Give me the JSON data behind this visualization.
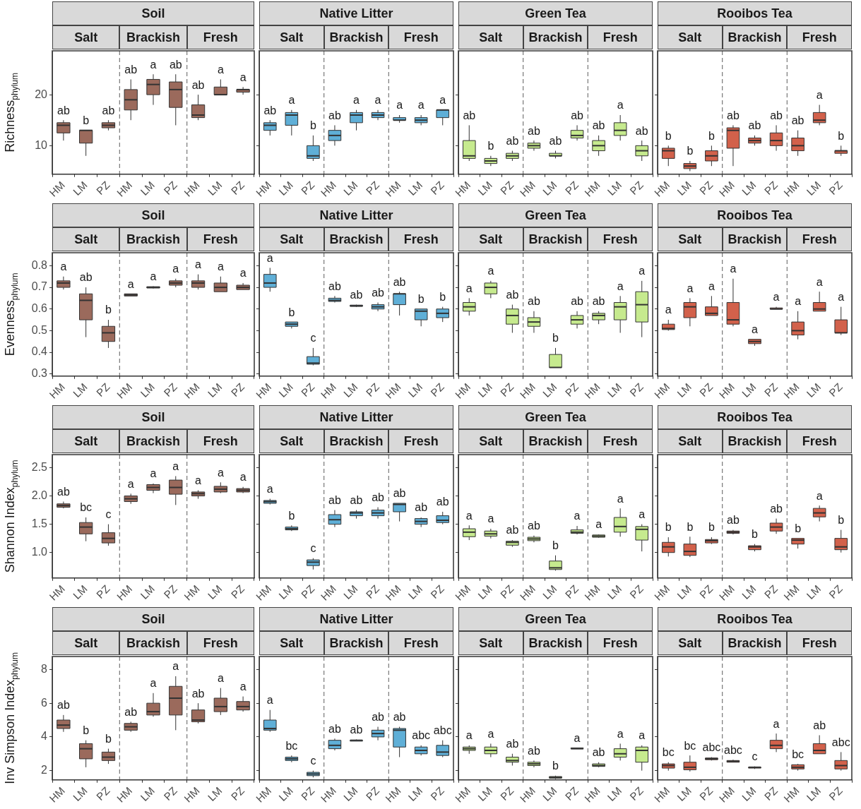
{
  "chart_data": [
    {
      "type": "box",
      "title": "Soil",
      "annotations": [
        "Salt",
        "Brackish",
        "Fresh"
      ],
      "ylabel": "Richness$_{phylum}$",
      "categories": [
        "HM",
        "LM",
        "PZ",
        "HM",
        "LM",
        "PZ",
        "HM",
        "LM",
        "PZ"
      ],
      "color": "#9b6a5c",
      "ylim": [
        4.4,
        28.6
      ],
      "yticks": [
        10,
        20
      ],
      "value_labels": [
        "ab",
        "b",
        "ab",
        "ab",
        "a",
        "ab",
        "ab",
        "a",
        "a"
      ],
      "boxes": [
        {
          "low": 11,
          "q1": 12.5,
          "median": 14,
          "q3": 14.5,
          "high": 15
        },
        {
          "low": 8,
          "q1": 10.5,
          "median": 13,
          "q3": 13,
          "high": 13
        },
        {
          "low": 13,
          "q1": 13.5,
          "median": 14,
          "q3": 14.5,
          "high": 15
        },
        {
          "low": 15,
          "q1": 17,
          "median": 19,
          "q3": 21,
          "high": 23
        },
        {
          "low": 18,
          "q1": 20,
          "median": 22,
          "q3": 23,
          "high": 24
        },
        {
          "low": 14,
          "q1": 17.5,
          "median": 21,
          "q3": 22.5,
          "high": 24
        },
        {
          "low": 15,
          "q1": 15.5,
          "median": 16,
          "q3": 18,
          "high": 20
        },
        {
          "low": 20,
          "q1": 20,
          "median": 20,
          "q3": 21.5,
          "high": 23
        },
        {
          "low": 20,
          "q1": 20.5,
          "median": 21,
          "q3": 21,
          "high": 21.5
        }
      ]
    },
    {
      "type": "box",
      "title": "Native Litter",
      "annotations": [
        "Salt",
        "Brackish",
        "Fresh"
      ],
      "categories": [
        "HM",
        "LM",
        "PZ",
        "HM",
        "LM",
        "PZ",
        "HM",
        "LM",
        "PZ"
      ],
      "color": "#5fafd7",
      "ylim": [
        4.4,
        28.6
      ],
      "yticks": [
        10,
        20
      ],
      "tick_labels": "x",
      "value_labels": [
        "ab",
        "a",
        "b",
        "ab",
        "a",
        "a",
        "a",
        "a",
        "a"
      ],
      "boxes": [
        {
          "low": 12,
          "q1": 13,
          "median": 14,
          "q3": 14.5,
          "high": 15
        },
        {
          "low": 12,
          "q1": 14,
          "median": 16,
          "q3": 16.5,
          "high": 17
        },
        {
          "low": 7,
          "q1": 7.5,
          "median": 8,
          "q3": 10,
          "high": 12
        },
        {
          "low": 10,
          "q1": 11,
          "median": 12,
          "q3": 13,
          "high": 14
        },
        {
          "low": 13,
          "q1": 14.5,
          "median": 16,
          "q3": 16.5,
          "high": 17
        },
        {
          "low": 15,
          "q1": 15.5,
          "median": 16,
          "q3": 16.5,
          "high": 17
        },
        {
          "low": 14.5,
          "q1": 15,
          "median": 15,
          "q3": 15.5,
          "high": 16
        },
        {
          "low": 14,
          "q1": 14.5,
          "median": 15,
          "q3": 15.5,
          "high": 16
        },
        {
          "low": 14,
          "q1": 15.5,
          "median": 17,
          "q3": 17,
          "high": 17
        }
      ]
    },
    {
      "type": "box",
      "title": "Green Tea",
      "annotations": [
        "Salt",
        "Brackish",
        "Fresh"
      ],
      "categories": [
        "HM",
        "LM",
        "PZ",
        "HM",
        "LM",
        "PZ",
        "HM",
        "LM",
        "PZ"
      ],
      "color": "#c6ea8e",
      "ylim": [
        4.4,
        28.6
      ],
      "yticks": [
        10,
        20
      ],
      "tick_labels": "x",
      "value_labels": [
        "ab",
        "b",
        "ab",
        "ab",
        "ab",
        "ab",
        "ab",
        "a",
        "ab"
      ],
      "boxes": [
        {
          "low": 7,
          "q1": 7.5,
          "median": 8,
          "q3": 11,
          "high": 14
        },
        {
          "low": 6,
          "q1": 6.5,
          "median": 7,
          "q3": 7.5,
          "high": 8
        },
        {
          "low": 7,
          "q1": 7.5,
          "median": 8,
          "q3": 8.5,
          "high": 9
        },
        {
          "low": 9,
          "q1": 9.5,
          "median": 10,
          "q3": 10.5,
          "high": 11
        },
        {
          "low": 7.5,
          "q1": 8,
          "median": 8,
          "q3": 8.5,
          "high": 9
        },
        {
          "low": 11,
          "q1": 11.5,
          "median": 12,
          "q3": 13,
          "high": 14
        },
        {
          "low": 8,
          "q1": 9,
          "median": 10,
          "q3": 11,
          "high": 12
        },
        {
          "low": 11,
          "q1": 12,
          "median": 13,
          "q3": 14.5,
          "high": 16
        },
        {
          "low": 7,
          "q1": 8,
          "median": 9,
          "q3": 10,
          "high": 11
        }
      ]
    },
    {
      "type": "box",
      "title": "Rooibos Tea",
      "annotations": [
        "Salt",
        "Brackish",
        "Fresh"
      ],
      "categories": [
        "HM",
        "LM",
        "PZ",
        "HM",
        "LM",
        "PZ",
        "HM",
        "LM",
        "PZ"
      ],
      "color": "#d2614b",
      "ylim": [
        4.4,
        28.6
      ],
      "yticks": [
        10,
        20
      ],
      "tick_labels": "x",
      "value_labels": [
        "b",
        "b",
        "b",
        "ab",
        "ab",
        "ab",
        "ab",
        "a",
        "b"
      ],
      "boxes": [
        {
          "low": 6,
          "q1": 7.5,
          "median": 9,
          "q3": 9.5,
          "high": 10
        },
        {
          "low": 5,
          "q1": 5.5,
          "median": 6,
          "q3": 6.5,
          "high": 7
        },
        {
          "low": 6,
          "q1": 7,
          "median": 8,
          "q3": 9,
          "high": 10
        },
        {
          "low": 6,
          "q1": 9.5,
          "median": 13,
          "q3": 13.5,
          "high": 14
        },
        {
          "low": 10,
          "q1": 10.5,
          "median": 11,
          "q3": 11.5,
          "high": 12
        },
        {
          "low": 9,
          "q1": 10,
          "median": 11,
          "q3": 12.5,
          "high": 14
        },
        {
          "low": 8,
          "q1": 9,
          "median": 10,
          "q3": 11.5,
          "high": 13
        },
        {
          "low": 14,
          "q1": 14.5,
          "median": 15,
          "q3": 16.5,
          "high": 18
        },
        {
          "low": 8,
          "q1": 8.5,
          "median": 9,
          "q3": 9,
          "high": 10
        }
      ]
    },
    {
      "type": "box",
      "title": "Soil",
      "annotations": [
        "Salt",
        "Brackish",
        "Fresh"
      ],
      "ylabel": "Evenness$_{phylum}$",
      "categories": [
        "HM",
        "LM",
        "PZ",
        "HM",
        "LM",
        "PZ",
        "HM",
        "LM",
        "PZ"
      ],
      "color": "#9b6a5c",
      "ylim": [
        0.29,
        0.86
      ],
      "yticks": [
        0.3,
        0.4,
        0.5,
        0.6,
        0.7,
        0.8
      ],
      "value_labels": [
        "a",
        "ab",
        "b",
        "a",
        "a",
        "a",
        "a",
        "a",
        "a"
      ],
      "boxes": [
        {
          "low": 0.69,
          "q1": 0.7,
          "median": 0.72,
          "q3": 0.73,
          "high": 0.75
        },
        {
          "low": 0.47,
          "q1": 0.55,
          "median": 0.64,
          "q3": 0.67,
          "high": 0.7
        },
        {
          "low": 0.42,
          "q1": 0.45,
          "median": 0.49,
          "q3": 0.52,
          "high": 0.55
        },
        {
          "low": 0.66,
          "q1": 0.66,
          "median": 0.665,
          "q3": 0.67,
          "high": 0.67
        },
        {
          "low": 0.695,
          "q1": 0.697,
          "median": 0.7,
          "q3": 0.703,
          "high": 0.705
        },
        {
          "low": 0.7,
          "q1": 0.71,
          "median": 0.72,
          "q3": 0.73,
          "high": 0.74
        },
        {
          "low": 0.69,
          "q1": 0.7,
          "median": 0.72,
          "q3": 0.73,
          "high": 0.76
        },
        {
          "low": 0.68,
          "q1": 0.68,
          "median": 0.7,
          "q3": 0.72,
          "high": 0.75
        },
        {
          "low": 0.69,
          "q1": 0.69,
          "median": 0.7,
          "q3": 0.71,
          "high": 0.72
        }
      ]
    },
    {
      "type": "box",
      "title": "Native Litter",
      "annotations": [
        "Salt",
        "Brackish",
        "Fresh"
      ],
      "categories": [
        "HM",
        "LM",
        "PZ",
        "HM",
        "LM",
        "PZ",
        "HM",
        "LM",
        "PZ"
      ],
      "color": "#5fafd7",
      "ylim": [
        0.29,
        0.86
      ],
      "yticks": [
        0.3,
        0.4,
        0.5,
        0.6,
        0.7,
        0.8
      ],
      "tick_labels": "x",
      "value_labels": [
        "a",
        "b",
        "c",
        "ab",
        "ab",
        "ab",
        "ab",
        "b",
        "b"
      ],
      "boxes": [
        {
          "low": 0.68,
          "q1": 0.7,
          "median": 0.72,
          "q3": 0.76,
          "high": 0.79
        },
        {
          "low": 0.51,
          "q1": 0.52,
          "median": 0.53,
          "q3": 0.54,
          "high": 0.54
        },
        {
          "low": 0.34,
          "q1": 0.345,
          "median": 0.35,
          "q3": 0.38,
          "high": 0.42
        },
        {
          "low": 0.63,
          "q1": 0.635,
          "median": 0.64,
          "q3": 0.65,
          "high": 0.66
        },
        {
          "low": 0.61,
          "q1": 0.612,
          "median": 0.615,
          "q3": 0.618,
          "high": 0.62
        },
        {
          "low": 0.59,
          "q1": 0.6,
          "median": 0.61,
          "q3": 0.62,
          "high": 0.63
        },
        {
          "low": 0.57,
          "q1": 0.62,
          "median": 0.67,
          "q3": 0.67,
          "high": 0.68
        },
        {
          "low": 0.52,
          "q1": 0.55,
          "median": 0.59,
          "q3": 0.6,
          "high": 0.6
        },
        {
          "low": 0.54,
          "q1": 0.56,
          "median": 0.58,
          "q3": 0.6,
          "high": 0.61
        }
      ]
    },
    {
      "type": "box",
      "title": "Green Tea",
      "annotations": [
        "Salt",
        "Brackish",
        "Fresh"
      ],
      "categories": [
        "HM",
        "LM",
        "PZ",
        "HM",
        "LM",
        "PZ",
        "HM",
        "LM",
        "PZ"
      ],
      "color": "#c6ea8e",
      "ylim": [
        0.29,
        0.86
      ],
      "yticks": [
        0.3,
        0.4,
        0.5,
        0.6,
        0.7,
        0.8
      ],
      "tick_labels": "x",
      "value_labels": [
        "a",
        "a",
        "ab",
        "ab",
        "b",
        "ab",
        "ab",
        "a",
        "a"
      ],
      "boxes": [
        {
          "low": 0.57,
          "q1": 0.59,
          "median": 0.61,
          "q3": 0.63,
          "high": 0.65
        },
        {
          "low": 0.65,
          "q1": 0.67,
          "median": 0.7,
          "q3": 0.72,
          "high": 0.73
        },
        {
          "low": 0.49,
          "q1": 0.53,
          "median": 0.57,
          "q3": 0.6,
          "high": 0.62
        },
        {
          "low": 0.49,
          "q1": 0.52,
          "median": 0.54,
          "q3": 0.56,
          "high": 0.59
        },
        {
          "low": 0.33,
          "q1": 0.33,
          "median": 0.33,
          "q3": 0.39,
          "high": 0.42
        },
        {
          "low": 0.51,
          "q1": 0.53,
          "median": 0.55,
          "q3": 0.57,
          "high": 0.59
        },
        {
          "low": 0.53,
          "q1": 0.55,
          "median": 0.57,
          "q3": 0.58,
          "high": 0.59
        },
        {
          "low": 0.49,
          "q1": 0.55,
          "median": 0.61,
          "q3": 0.63,
          "high": 0.66
        },
        {
          "low": 0.47,
          "q1": 0.54,
          "median": 0.62,
          "q3": 0.68,
          "high": 0.73
        }
      ]
    },
    {
      "type": "box",
      "title": "Rooibos Tea",
      "annotations": [
        "Salt",
        "Brackish",
        "Fresh"
      ],
      "categories": [
        "HM",
        "LM",
        "PZ",
        "HM",
        "LM",
        "PZ",
        "HM",
        "LM",
        "PZ"
      ],
      "color": "#d2614b",
      "ylim": [
        0.29,
        0.86
      ],
      "yticks": [
        0.3,
        0.4,
        0.5,
        0.6,
        0.7,
        0.8
      ],
      "tick_labels": "x",
      "value_labels": [
        "a",
        "a",
        "a",
        "a",
        "a",
        "a",
        "a",
        "a",
        "a"
      ],
      "boxes": [
        {
          "low": 0.5,
          "q1": 0.505,
          "median": 0.51,
          "q3": 0.53,
          "high": 0.55
        },
        {
          "low": 0.52,
          "q1": 0.56,
          "median": 0.61,
          "q3": 0.63,
          "high": 0.65
        },
        {
          "low": 0.57,
          "q1": 0.57,
          "median": 0.58,
          "q3": 0.61,
          "high": 0.66
        },
        {
          "low": 0.52,
          "q1": 0.53,
          "median": 0.55,
          "q3": 0.63,
          "high": 0.74
        },
        {
          "low": 0.43,
          "q1": 0.44,
          "median": 0.45,
          "q3": 0.46,
          "high": 0.46
        },
        {
          "low": 0.6,
          "q1": 0.6,
          "median": 0.6,
          "q3": 0.605,
          "high": 0.61
        },
        {
          "low": 0.46,
          "q1": 0.48,
          "median": 0.5,
          "q3": 0.54,
          "high": 0.59
        },
        {
          "low": 0.59,
          "q1": 0.59,
          "median": 0.6,
          "q3": 0.63,
          "high": 0.68
        },
        {
          "low": 0.48,
          "q1": 0.49,
          "median": 0.49,
          "q3": 0.55,
          "high": 0.61
        }
      ]
    },
    {
      "type": "box",
      "title": "Soil",
      "annotations": [
        "Salt",
        "Brackish",
        "Fresh"
      ],
      "ylabel": "Shannon Index$_{phylum}$",
      "categories": [
        "HM",
        "LM",
        "PZ",
        "HM",
        "LM",
        "PZ",
        "HM",
        "LM",
        "PZ"
      ],
      "color": "#9b6a5c",
      "ylim": [
        0.55,
        2.73
      ],
      "yticks": [
        {
          "value": 1,
          "label": "1.0"
        },
        1.5,
        {
          "value": 2,
          "label": "2.0"
        },
        2.5
      ],
      "value_labels": [
        "ab",
        "bc",
        "c",
        "a",
        "a",
        "a",
        "a",
        "a",
        "a"
      ],
      "boxes": [
        {
          "low": 1.78,
          "q1": 1.8,
          "median": 1.83,
          "q3": 1.86,
          "high": 1.9
        },
        {
          "low": 1.2,
          "q1": 1.33,
          "median": 1.45,
          "q3": 1.53,
          "high": 1.62
        },
        {
          "low": 1.12,
          "q1": 1.17,
          "median": 1.25,
          "q3": 1.35,
          "high": 1.5
        },
        {
          "low": 1.86,
          "q1": 1.9,
          "median": 1.95,
          "q3": 2,
          "high": 2.04
        },
        {
          "low": 2.05,
          "q1": 2.1,
          "median": 2.15,
          "q3": 2.2,
          "high": 2.22
        },
        {
          "low": 1.84,
          "q1": 2.03,
          "median": 2.15,
          "q3": 2.28,
          "high": 2.35
        },
        {
          "low": 1.95,
          "q1": 2,
          "median": 2.04,
          "q3": 2.07,
          "high": 2.1
        },
        {
          "low": 2.05,
          "q1": 2.07,
          "median": 2.12,
          "q3": 2.17,
          "high": 2.24
        },
        {
          "low": 2.05,
          "q1": 2.07,
          "median": 2.1,
          "q3": 2.13,
          "high": 2.16
        }
      ]
    },
    {
      "type": "box",
      "title": "Native Litter",
      "annotations": [
        "Salt",
        "Brackish",
        "Fresh"
      ],
      "categories": [
        "HM",
        "LM",
        "PZ",
        "HM",
        "LM",
        "PZ",
        "HM",
        "LM",
        "PZ"
      ],
      "color": "#5fafd7",
      "ylim": [
        0.55,
        2.73
      ],
      "yticks": [
        1,
        1.5,
        2,
        2.5
      ],
      "tick_labels": "x",
      "value_labels": [
        "a",
        "b",
        "c",
        "ab",
        "ab",
        "ab",
        "ab",
        "ab",
        "ab"
      ],
      "boxes": [
        {
          "low": 1.85,
          "q1": 1.87,
          "median": 1.9,
          "q3": 1.92,
          "high": 1.95
        },
        {
          "low": 1.38,
          "q1": 1.4,
          "median": 1.42,
          "q3": 1.45,
          "high": 1.48
        },
        {
          "low": 0.7,
          "q1": 0.77,
          "median": 0.83,
          "q3": 0.87,
          "high": 0.9
        },
        {
          "low": 1.45,
          "q1": 1.5,
          "median": 1.58,
          "q3": 1.67,
          "high": 1.75
        },
        {
          "low": 1.6,
          "q1": 1.65,
          "median": 1.7,
          "q3": 1.72,
          "high": 1.75
        },
        {
          "low": 1.6,
          "q1": 1.65,
          "median": 1.7,
          "q3": 1.75,
          "high": 1.8
        },
        {
          "low": 1.55,
          "q1": 1.72,
          "median": 1.85,
          "q3": 1.87,
          "high": 1.87
        },
        {
          "low": 1.45,
          "q1": 1.5,
          "median": 1.55,
          "q3": 1.6,
          "high": 1.62
        },
        {
          "low": 1.5,
          "q1": 1.53,
          "median": 1.57,
          "q3": 1.65,
          "high": 1.72
        }
      ]
    },
    {
      "type": "box",
      "title": "Green Tea",
      "annotations": [
        "Salt",
        "Brackish",
        "Fresh"
      ],
      "categories": [
        "HM",
        "LM",
        "PZ",
        "HM",
        "LM",
        "PZ",
        "HM",
        "LM",
        "PZ"
      ],
      "color": "#c6ea8e",
      "ylim": [
        0.55,
        2.73
      ],
      "yticks": [
        1,
        1.5,
        2,
        2.5
      ],
      "tick_labels": "x",
      "value_labels": [
        "a",
        "a",
        "ab",
        "ab",
        "b",
        "a",
        "a",
        "a",
        "a"
      ],
      "boxes": [
        {
          "low": 1.22,
          "q1": 1.28,
          "median": 1.36,
          "q3": 1.42,
          "high": 1.48
        },
        {
          "low": 1.25,
          "q1": 1.29,
          "median": 1.33,
          "q3": 1.38,
          "high": 1.42
        },
        {
          "low": 1.1,
          "q1": 1.13,
          "median": 1.18,
          "q3": 1.2,
          "high": 1.22
        },
        {
          "low": 1.18,
          "q1": 1.21,
          "median": 1.24,
          "q3": 1.27,
          "high": 1.3
        },
        {
          "low": 0.68,
          "q1": 0.7,
          "median": 0.73,
          "q3": 0.85,
          "high": 0.95
        },
        {
          "low": 1.32,
          "q1": 1.34,
          "median": 1.36,
          "q3": 1.4,
          "high": 1.47
        },
        {
          "low": 1.26,
          "q1": 1.27,
          "median": 1.29,
          "q3": 1.31,
          "high": 1.32
        },
        {
          "low": 1.28,
          "q1": 1.36,
          "median": 1.46,
          "q3": 1.62,
          "high": 1.78
        },
        {
          "low": 1.02,
          "q1": 1.22,
          "median": 1.41,
          "q3": 1.46,
          "high": 1.5
        }
      ]
    },
    {
      "type": "box",
      "title": "Rooibos Tea",
      "annotations": [
        "Salt",
        "Brackish",
        "Fresh"
      ],
      "categories": [
        "HM",
        "LM",
        "PZ",
        "HM",
        "LM",
        "PZ",
        "HM",
        "LM",
        "PZ"
      ],
      "color": "#d2614b",
      "ylim": [
        0.55,
        2.73
      ],
      "yticks": [
        1,
        1.5,
        2,
        2.5
      ],
      "tick_labels": "x",
      "value_labels": [
        "b",
        "b",
        "b",
        "ab",
        "b",
        "ab",
        "b",
        "a",
        "b"
      ],
      "boxes": [
        {
          "low": 0.93,
          "q1": 1,
          "median": 1.1,
          "q3": 1.18,
          "high": 1.27
        },
        {
          "low": 0.92,
          "q1": 0.95,
          "median": 1.02,
          "q3": 1.15,
          "high": 1.28
        },
        {
          "low": 1.15,
          "q1": 1.17,
          "median": 1.21,
          "q3": 1.23,
          "high": 1.27
        },
        {
          "low": 1.32,
          "q1": 1.34,
          "median": 1.36,
          "q3": 1.38,
          "high": 1.4
        },
        {
          "low": 1.02,
          "q1": 1.05,
          "median": 1.1,
          "q3": 1.12,
          "high": 1.15
        },
        {
          "low": 1.33,
          "q1": 1.38,
          "median": 1.45,
          "q3": 1.52,
          "high": 1.6
        },
        {
          "low": 1.07,
          "q1": 1.15,
          "median": 1.22,
          "q3": 1.25,
          "high": 1.25
        },
        {
          "low": 1.55,
          "q1": 1.63,
          "median": 1.7,
          "q3": 1.78,
          "high": 1.83
        },
        {
          "low": 1,
          "q1": 1.05,
          "median": 1.1,
          "q3": 1.25,
          "high": 1.4
        }
      ]
    },
    {
      "type": "box",
      "title": "Soil",
      "annotations": [
        "Salt",
        "Brackish",
        "Fresh"
      ],
      "ylabel": "Inv Simpson Index$_{phylum}$",
      "categories": [
        "HM",
        "LM",
        "PZ",
        "HM",
        "LM",
        "PZ",
        "HM",
        "LM",
        "PZ"
      ],
      "color": "#9b6a5c",
      "ylim": [
        1.45,
        8.77
      ],
      "yticks": [
        2,
        4,
        6,
        8
      ],
      "value_labels": [
        "ab",
        "b",
        "b",
        "ab",
        "a",
        "a",
        "ab",
        "a",
        "a"
      ],
      "boxes": [
        {
          "low": 4.3,
          "q1": 4.5,
          "median": 4.7,
          "q3": 5,
          "high": 5.3
        },
        {
          "low": 2.2,
          "q1": 2.7,
          "median": 3.3,
          "q3": 3.6,
          "high": 3.8
        },
        {
          "low": 2.4,
          "q1": 2.6,
          "median": 2.8,
          "q3": 3.1,
          "high": 3.3
        },
        {
          "low": 4.3,
          "q1": 4.4,
          "median": 4.6,
          "q3": 4.8,
          "high": 4.9
        },
        {
          "low": 5.2,
          "q1": 5.3,
          "median": 5.5,
          "q3": 6,
          "high": 6.6
        },
        {
          "low": 4.4,
          "q1": 5.3,
          "median": 6.3,
          "q3": 7,
          "high": 7.6
        },
        {
          "low": 4.8,
          "q1": 4.9,
          "median": 5,
          "q3": 5.6,
          "high": 6
        },
        {
          "low": 5.3,
          "q1": 5.5,
          "median": 5.8,
          "q3": 6.3,
          "high": 6.9
        },
        {
          "low": 5.5,
          "q1": 5.6,
          "median": 5.8,
          "q3": 6.1,
          "high": 6.4
        }
      ]
    },
    {
      "type": "box",
      "title": "Native Litter",
      "annotations": [
        "Salt",
        "Brackish",
        "Fresh"
      ],
      "categories": [
        "HM",
        "LM",
        "PZ",
        "HM",
        "LM",
        "PZ",
        "HM",
        "LM",
        "PZ"
      ],
      "color": "#5fafd7",
      "ylim": [
        1.45,
        8.77
      ],
      "yticks": [
        2,
        4,
        6,
        8
      ],
      "tick_labels": "x",
      "value_labels": [
        "a",
        "bc",
        "c",
        "ab",
        "ab",
        "ab",
        "ab",
        "abc",
        "abc"
      ],
      "boxes": [
        {
          "low": 4.3,
          "q1": 4.4,
          "median": 4.5,
          "q3": 5,
          "high": 5.6
        },
        {
          "low": 2.5,
          "q1": 2.6,
          "median": 2.7,
          "q3": 2.8,
          "high": 2.9
        },
        {
          "low": 1.6,
          "q1": 1.7,
          "median": 1.8,
          "q3": 1.9,
          "high": 2
        },
        {
          "low": 3.2,
          "q1": 3.3,
          "median": 3.5,
          "q3": 3.8,
          "high": 3.9
        },
        {
          "low": 3.75,
          "q1": 3.75,
          "median": 3.8,
          "q3": 3.8,
          "high": 3.85
        },
        {
          "low": 3.8,
          "q1": 4,
          "median": 4.2,
          "q3": 4.4,
          "high": 4.6
        },
        {
          "low": 2.8,
          "q1": 3.4,
          "median": 4.4,
          "q3": 4.5,
          "high": 4.6
        },
        {
          "low": 2.9,
          "q1": 3,
          "median": 3.2,
          "q3": 3.4,
          "high": 3.5
        },
        {
          "low": 2.8,
          "q1": 2.9,
          "median": 3.1,
          "q3": 3.5,
          "high": 3.8
        }
      ]
    },
    {
      "type": "box",
      "title": "Green Tea",
      "annotations": [
        "Salt",
        "Brackish",
        "Fresh"
      ],
      "categories": [
        "HM",
        "LM",
        "PZ",
        "HM",
        "LM",
        "PZ",
        "HM",
        "LM",
        "PZ"
      ],
      "color": "#c6ea8e",
      "ylim": [
        1.45,
        8.77
      ],
      "yticks": [
        2,
        4,
        6,
        8
      ],
      "tick_labels": "x",
      "value_labels": [
        "a",
        "a",
        "ab",
        "ab",
        "b",
        "a",
        "ab",
        "a",
        "a"
      ],
      "boxes": [
        {
          "low": 3,
          "q1": 3.2,
          "median": 3.3,
          "q3": 3.4,
          "high": 3.5
        },
        {
          "low": 2.8,
          "q1": 3,
          "median": 3.2,
          "q3": 3.4,
          "high": 3.6
        },
        {
          "low": 2.3,
          "q1": 2.5,
          "median": 2.6,
          "q3": 2.8,
          "high": 3
        },
        {
          "low": 2.2,
          "q1": 2.3,
          "median": 2.4,
          "q3": 2.5,
          "high": 2.6
        },
        {
          "low": 1.5,
          "q1": 1.55,
          "median": 1.6,
          "q3": 1.65,
          "high": 1.7
        },
        {
          "low": 3.3,
          "q1": 3.3,
          "median": 3.3,
          "q3": 3.35,
          "high": 3.35
        },
        {
          "low": 2.2,
          "q1": 2.25,
          "median": 2.3,
          "q3": 2.4,
          "high": 2.5
        },
        {
          "low": 2.6,
          "q1": 2.8,
          "median": 3,
          "q3": 3.3,
          "high": 3.6
        },
        {
          "low": 2,
          "q1": 2.5,
          "median": 3.2,
          "q3": 3.4,
          "high": 3.5
        }
      ]
    },
    {
      "type": "box",
      "title": "Rooibos Tea",
      "annotations": [
        "Salt",
        "Brackish",
        "Fresh"
      ],
      "categories": [
        "HM",
        "LM",
        "PZ",
        "HM",
        "LM",
        "PZ",
        "HM",
        "LM",
        "PZ"
      ],
      "color": "#d2614b",
      "ylim": [
        1.45,
        8.77
      ],
      "yticks": [
        2,
        4,
        6,
        8
      ],
      "tick_labels": "x",
      "value_labels": [
        "bc",
        "bc",
        "abc",
        "abc",
        "c",
        "a",
        "bc",
        "ab",
        "abc"
      ],
      "boxes": [
        {
          "low": 2,
          "q1": 2.15,
          "median": 2.3,
          "q3": 2.4,
          "high": 2.5
        },
        {
          "low": 1.95,
          "q1": 2.05,
          "median": 2.2,
          "q3": 2.5,
          "high": 2.9
        },
        {
          "low": 2.6,
          "q1": 2.65,
          "median": 2.7,
          "q3": 2.75,
          "high": 2.8
        },
        {
          "low": 2.5,
          "q1": 2.5,
          "median": 2.55,
          "q3": 2.6,
          "high": 2.65
        },
        {
          "low": 2.1,
          "q1": 2.15,
          "median": 2.2,
          "q3": 2.2,
          "high": 2.25
        },
        {
          "low": 3.1,
          "q1": 3.3,
          "median": 3.5,
          "q3": 3.8,
          "high": 4.2
        },
        {
          "low": 2,
          "q1": 2.1,
          "median": 2.2,
          "q3": 2.35,
          "high": 2.4
        },
        {
          "low": 3,
          "q1": 3,
          "median": 3.2,
          "q3": 3.6,
          "high": 4.1
        },
        {
          "low": 2,
          "q1": 2.1,
          "median": 2.3,
          "q3": 2.6,
          "high": 3.1
        }
      ]
    }
  ]
}
